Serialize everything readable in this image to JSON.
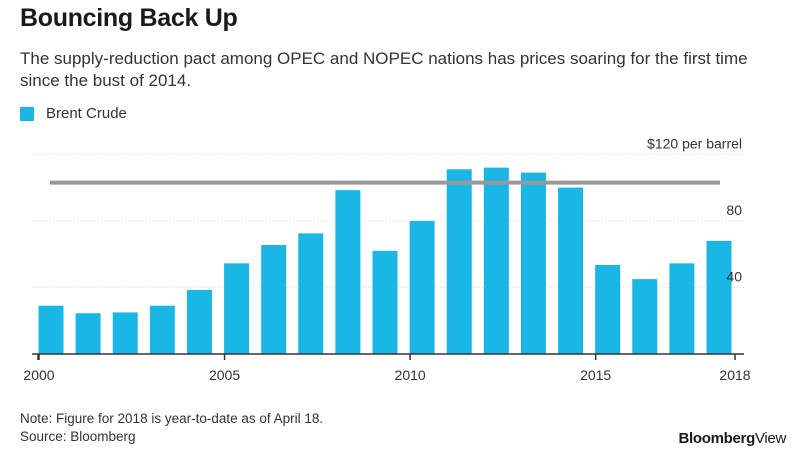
{
  "header": {
    "title": "Bouncing Back Up",
    "subtitle": "The supply-reduction pact among OPEC and NOPEC nations has prices soaring for the first time since the bust of 2014."
  },
  "legend": {
    "label": "Brent Crude"
  },
  "footer": {
    "note": "Note: Figure for 2018 is year-to-date as of April 18.",
    "source": "Source: Bloomberg",
    "brand_bold": "Bloomberg",
    "brand_light": "View"
  },
  "colors": {
    "bar": "#1ab7e6",
    "reference_line": "#999999",
    "gridline": "#d9d9d9",
    "axis": "#333333"
  },
  "chart_data": {
    "type": "bar",
    "title": "Bouncing Back Up",
    "series_name": "Brent Crude",
    "categories": [
      2000,
      2001,
      2002,
      2003,
      2004,
      2005,
      2006,
      2007,
      2008,
      2009,
      2010,
      2011,
      2012,
      2013,
      2014,
      2015,
      2016,
      2017,
      2018
    ],
    "values": [
      29,
      24.5,
      25,
      29,
      38.5,
      54.5,
      65.5,
      72.5,
      98.5,
      62,
      80,
      111,
      112,
      109,
      100,
      53.5,
      45,
      54.5,
      68
    ],
    "reference_line": {
      "value": 103,
      "label": ""
    },
    "y_ticks": [
      40,
      80,
      120
    ],
    "y_tick_labels": [
      "40",
      "80",
      "$120 per barrel"
    ],
    "x_ticks": [
      2000,
      2005,
      2010,
      2015,
      2018
    ],
    "x_tick_labels": [
      "2000",
      "2005",
      "2010",
      "2015",
      "2018"
    ],
    "ylim": [
      0,
      125
    ],
    "xlabel": "",
    "ylabel": "",
    "grid": true,
    "legend_position": "top-left"
  }
}
